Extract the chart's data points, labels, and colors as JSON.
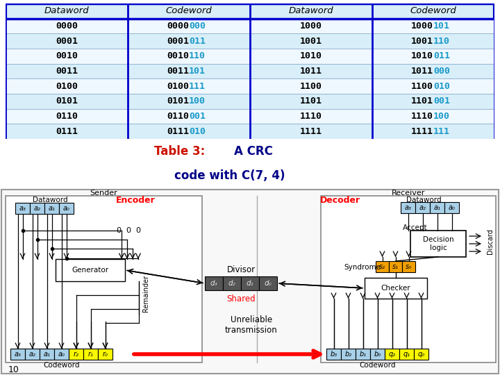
{
  "table_headers": [
    "Dataword",
    "Codeword",
    "Dataword",
    "Codeword"
  ],
  "table_rows": [
    [
      "0000",
      "0000",
      "000",
      "1000",
      "1000",
      "101"
    ],
    [
      "0001",
      "0001",
      "011",
      "1001",
      "1001",
      "110"
    ],
    [
      "0010",
      "0010",
      "110",
      "1010",
      "1010",
      "011"
    ],
    [
      "0011",
      "0011",
      "101",
      "1011",
      "1011",
      "000"
    ],
    [
      "0100",
      "0100",
      "111",
      "1100",
      "1100",
      "010"
    ],
    [
      "0101",
      "0101",
      "100",
      "1101",
      "1101",
      "001"
    ],
    [
      "0110",
      "0110",
      "001",
      "1110",
      "1110",
      "100"
    ],
    [
      "0111",
      "0111",
      "010",
      "1111",
      "1111",
      "111"
    ]
  ],
  "table_bg_light": "#d8eef8",
  "table_bg_white": "#f0f8ff",
  "table_border": "#0000cc",
  "codeword_suffix_color": "#1a9ac9",
  "table_font_size": 9.5,
  "title_color_red": "#cc1100",
  "title_color_blue": "#000088",
  "title_font_size": 12,
  "light_blue": "#a8d0e8",
  "yellow": "#f8f800",
  "orange": "#f0a000",
  "dark_gray": "#555555",
  "bg_diagram": "#e8e8e8",
  "bg_white": "#ffffff",
  "bg_figure": "#f8f8f8"
}
